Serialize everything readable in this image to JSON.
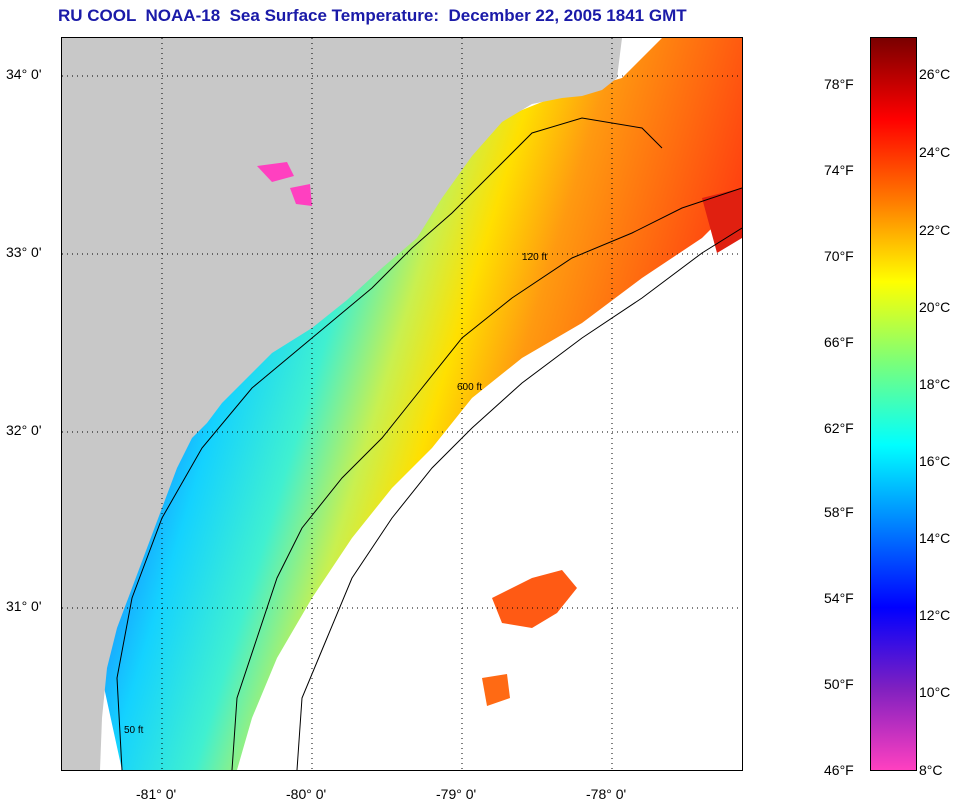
{
  "title": "RU COOL  NOAA-18  Sea Surface Temperature:  December 22, 2005 1841 GMT",
  "latitude_labels": [
    "34° 0'",
    "33° 0'",
    "32° 0'",
    "31° 0'"
  ],
  "longitude_labels": [
    "-81° 0'",
    "-80° 0'",
    "-79° 0'",
    "-78° 0'"
  ],
  "contour_labels": [
    "50 ft",
    "120 ft",
    "600 ft"
  ],
  "colorbar": {
    "fahrenheit": [
      "78°F",
      "74°F",
      "70°F",
      "66°F",
      "62°F",
      "58°F",
      "54°F",
      "50°F",
      "46°F"
    ],
    "celsius": [
      "26°C",
      "24°C",
      "22°C",
      "20°C",
      "18°C",
      "16°C",
      "14°C",
      "12°C",
      "10°C",
      "8°C"
    ],
    "colors": [
      "#7a0000",
      "#ff0000",
      "#ff7a00",
      "#ffff00",
      "#7aff7a",
      "#00ffff",
      "#0080ff",
      "#0000ff",
      "#8020c0",
      "#ff40c0"
    ]
  },
  "colors": {
    "land": "#c8c8c8",
    "no_data": "#ffffff",
    "title": "#1a1aa8"
  }
}
